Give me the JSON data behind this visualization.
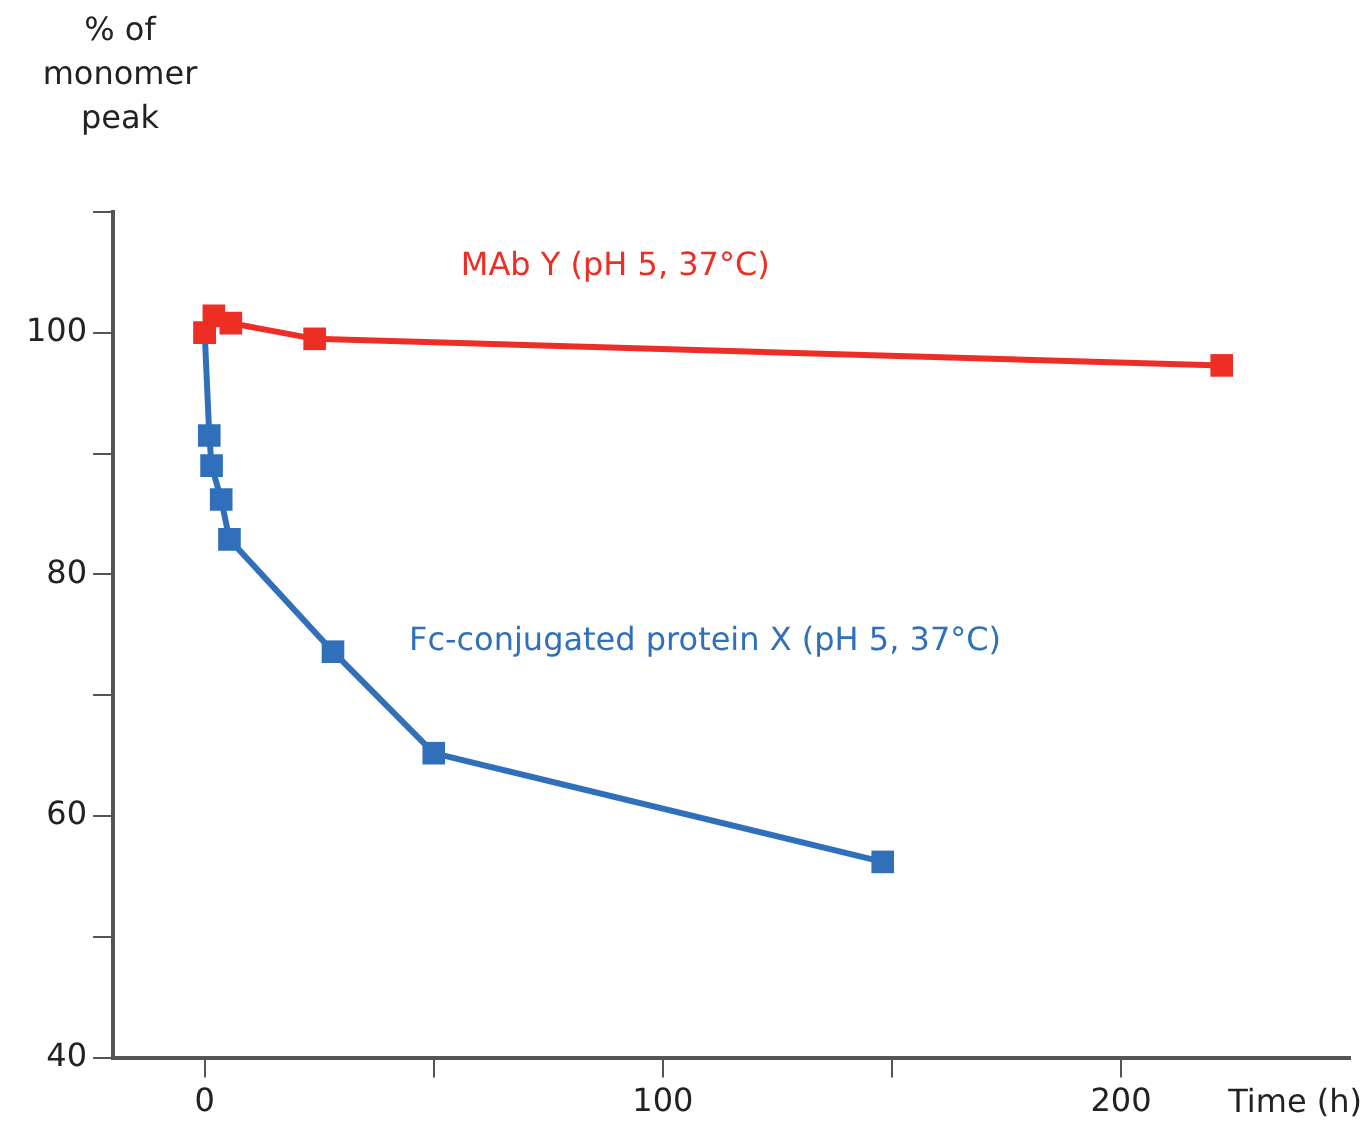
{
  "chart_data": {
    "type": "line",
    "ylabel": "% of monomer peak",
    "xlabel": "Time (h)",
    "xlim": [
      -20,
      250
    ],
    "xticks": [
      0,
      {
        "value": 50,
        "label": null
      },
      100,
      {
        "value": 150,
        "label": null
      },
      200
    ],
    "ylim": [
      40,
      110
    ],
    "yticks": [
      40,
      {
        "value": 50,
        "label": null
      },
      60,
      {
        "value": 70,
        "label": null
      },
      80,
      {
        "value": 90,
        "label": null
      },
      100,
      {
        "value": 110,
        "label": null
      }
    ],
    "grid": false,
    "legend": false,
    "marker": "square",
    "line_style": "solid",
    "series": [
      {
        "name": "MAb Y (pH 5, 37°C)",
        "color": "#ee2e24",
        "x": [
          0,
          2,
          5.7,
          24,
          222
        ],
        "values": [
          100,
          101.4,
          100.8,
          99.5,
          97.3
        ]
      },
      {
        "name": "Fc-conjugated protein X (pH 5, 37°C)",
        "color": "#3070bb",
        "x": [
          0,
          1,
          1.5,
          3.6,
          5.4,
          28,
          50,
          148
        ],
        "values": [
          100,
          91.5,
          89,
          86.2,
          82.9,
          73.6,
          65.2,
          56.2
        ]
      }
    ]
  }
}
